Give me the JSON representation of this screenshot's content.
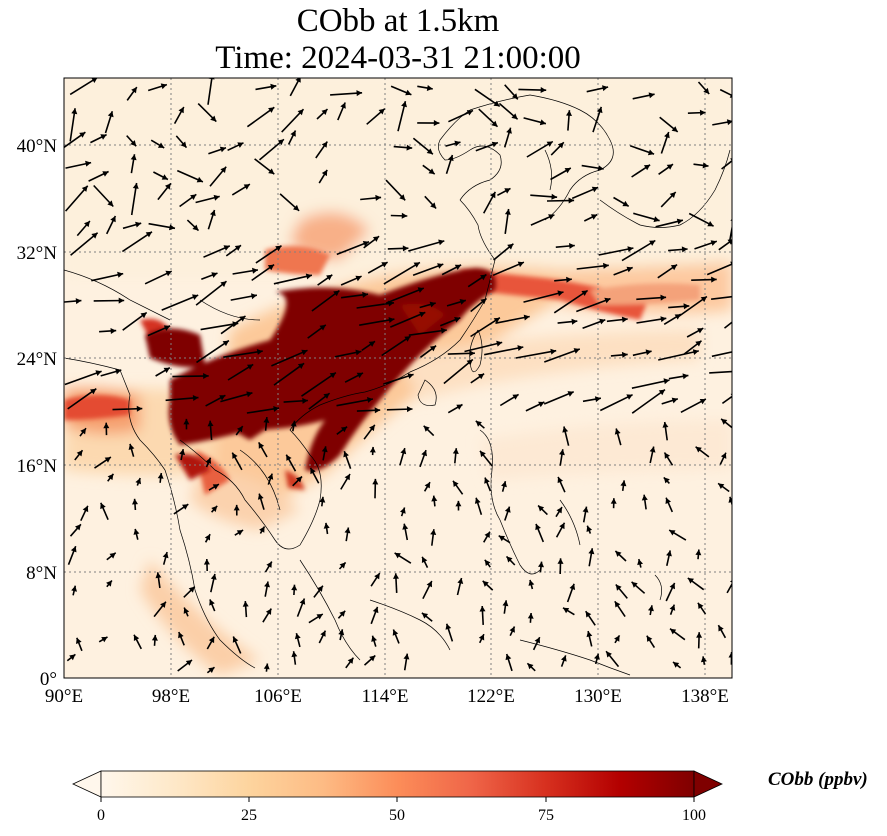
{
  "title": {
    "line1": "CObb at 1.5km",
    "line2": "Time: 2024-03-31 21:00:00"
  },
  "map": {
    "lon_range": [
      90,
      140
    ],
    "lat_range": [
      0,
      45
    ],
    "lon_ticks": [
      "90°E",
      "98°E",
      "106°E",
      "114°E",
      "122°E",
      "130°E",
      "138°E"
    ],
    "lat_ticks": [
      "0°",
      "8°N",
      "16°N",
      "24°N",
      "32°N",
      "40°N"
    ],
    "gridlines": "dotted",
    "variable": "CObb",
    "level": "1.5km",
    "colormap": "OrRd",
    "colors": {
      "low": "#fff7ec",
      "mid": "#fdbb84",
      "high": "#7f0000"
    },
    "wind_vectors": "black arrows"
  },
  "colorbar": {
    "label": "CObb (ppbv)",
    "ticks": [
      "0",
      "25",
      "50",
      "75",
      "100"
    ],
    "range": [
      0,
      100
    ],
    "extend": "both"
  }
}
